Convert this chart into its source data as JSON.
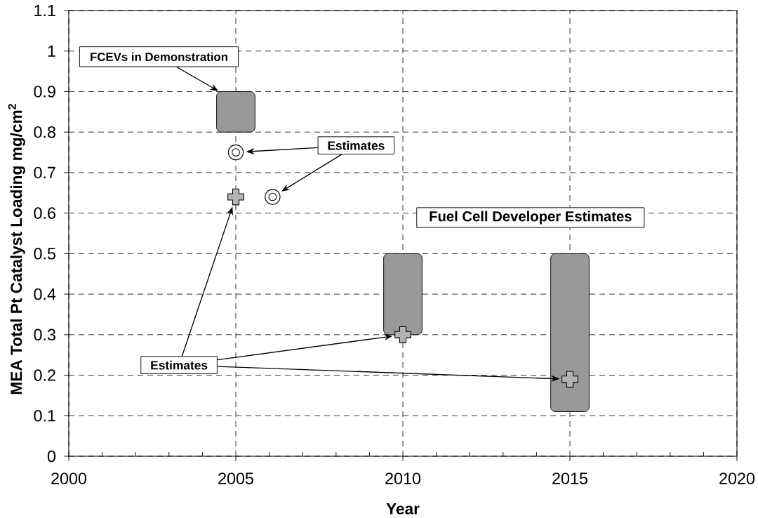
{
  "chart_data": {
    "type": "scatter",
    "xlabel": "Year",
    "ylabel": "MEA Total Pt Catalyst Loading mg/cm$^{2}$",
    "xlim": [
      2000,
      2020
    ],
    "ylim": [
      0,
      1.1
    ],
    "xticks": [
      2000,
      {
        "value": 2001,
        "label": null
      },
      {
        "value": 2002,
        "label": null
      },
      {
        "value": 2003,
        "label": null
      },
      {
        "value": 2004,
        "label": null
      },
      2005,
      {
        "value": 2006,
        "label": null
      },
      {
        "value": 2007,
        "label": null
      },
      {
        "value": 2008,
        "label": null
      },
      {
        "value": 2009,
        "label": null
      },
      2010,
      {
        "value": 2011,
        "label": null
      },
      {
        "value": 2012,
        "label": null
      },
      {
        "value": 2013,
        "label": null
      },
      {
        "value": 2014,
        "label": null
      },
      2015,
      {
        "value": 2016,
        "label": null
      },
      {
        "value": 2017,
        "label": null
      },
      {
        "value": 2018,
        "label": null
      },
      {
        "value": 2019,
        "label": null
      },
      2020
    ],
    "yticks": [
      0,
      0.1,
      0.2,
      0.3,
      0.4,
      0.5,
      0.6,
      0.7,
      0.8,
      0.9,
      1,
      1.1
    ],
    "grid": true,
    "series": [
      {
        "type": "bar",
        "name": "FCEVs in Demonstration",
        "color": "#999999",
        "x": [
          2005
        ],
        "base": [
          0.8
        ],
        "values": [
          0.1
        ]
      },
      {
        "type": "bar",
        "name": "Fuel Cell Developer Estimates",
        "color": "#999999",
        "x": [
          2010,
          2015
        ],
        "base": [
          0.3,
          0.11
        ],
        "values": [
          0.2,
          0.39
        ]
      },
      {
        "name": "Estimates",
        "marker": "circle",
        "color": "#000000",
        "x": [
          2005,
          2006.1
        ],
        "values": [
          0.75,
          0.64
        ]
      },
      {
        "name": "Estimates",
        "marker": "cross",
        "color": "#b3b3b3",
        "x": [
          2005,
          2010,
          2015
        ],
        "values": [
          0.64,
          0.3,
          0.19
        ]
      }
    ]
  }
}
